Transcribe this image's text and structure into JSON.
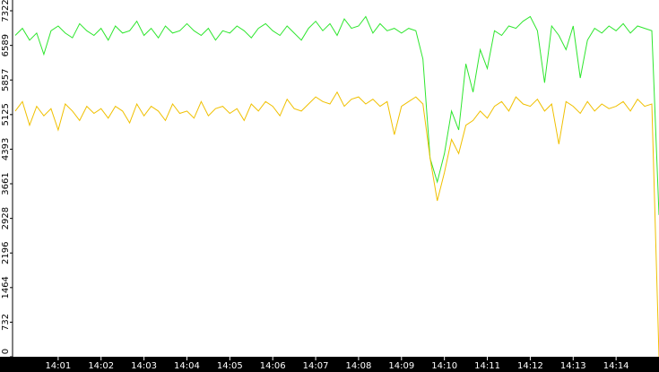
{
  "chart_data": {
    "type": "line",
    "x": [
      "14:00:00",
      "14:00:10",
      "14:00:20",
      "14:00:30",
      "14:00:40",
      "14:00:50",
      "14:01:00",
      "14:01:10",
      "14:01:20",
      "14:01:30",
      "14:01:40",
      "14:01:50",
      "14:02:00",
      "14:02:10",
      "14:02:20",
      "14:02:30",
      "14:02:40",
      "14:02:50",
      "14:03:00",
      "14:03:10",
      "14:03:20",
      "14:03:30",
      "14:03:40",
      "14:03:50",
      "14:04:00",
      "14:04:10",
      "14:04:20",
      "14:04:30",
      "14:04:40",
      "14:04:50",
      "14:05:00",
      "14:05:10",
      "14:05:20",
      "14:05:30",
      "14:05:40",
      "14:05:50",
      "14:06:00",
      "14:06:10",
      "14:06:20",
      "14:06:30",
      "14:06:40",
      "14:06:50",
      "14:07:00",
      "14:07:10",
      "14:07:20",
      "14:07:30",
      "14:07:40",
      "14:07:50",
      "14:08:00",
      "14:08:10",
      "14:08:20",
      "14:08:30",
      "14:08:40",
      "14:08:50",
      "14:09:00",
      "14:09:10",
      "14:09:20",
      "14:09:30",
      "14:09:40",
      "14:09:50",
      "14:10:00",
      "14:10:10",
      "14:10:20",
      "14:10:30",
      "14:10:40",
      "14:10:50",
      "14:11:00",
      "14:11:10",
      "14:11:20",
      "14:11:30",
      "14:11:40",
      "14:11:50",
      "14:12:00",
      "14:12:10",
      "14:12:20",
      "14:12:30",
      "14:12:40",
      "14:12:50",
      "14:13:00",
      "14:13:10",
      "14:13:20",
      "14:13:30",
      "14:13:40",
      "14:13:50",
      "14:14:00",
      "14:14:10",
      "14:14:20",
      "14:14:30",
      "14:14:40",
      "14:14:50",
      "14:15:00"
    ],
    "series": [
      {
        "color": "#2ee62e",
        "values": [
          6800,
          6950,
          6700,
          6850,
          6400,
          6900,
          7000,
          6850,
          6750,
          7050,
          6900,
          6800,
          6950,
          6700,
          7000,
          6850,
          6900,
          7100,
          6800,
          6950,
          6750,
          7000,
          6850,
          6900,
          7050,
          6900,
          6800,
          6950,
          6700,
          6900,
          6850,
          7000,
          6900,
          6750,
          6950,
          7050,
          6900,
          6800,
          7000,
          6850,
          6700,
          6950,
          7100,
          6900,
          7050,
          6800,
          7150,
          6950,
          7000,
          7200,
          6850,
          7050,
          6900,
          6950,
          6850,
          6950,
          6900,
          6300,
          4200,
          3700,
          4300,
          5200,
          4800,
          6200,
          5600,
          6500,
          6100,
          6900,
          6800,
          7000,
          6950,
          7100,
          7200,
          6900,
          5800,
          7000,
          6800,
          6500,
          7000,
          5900,
          6700,
          6950,
          6850,
          7000,
          6900,
          7050,
          6850,
          7000,
          6950,
          6900,
          3000
        ]
      },
      {
        "color": "#f0c000",
        "values": [
          5200,
          5400,
          4900,
          5300,
          5100,
          5250,
          4800,
          5350,
          5200,
          5000,
          5300,
          5150,
          5250,
          5050,
          5300,
          5200,
          4950,
          5350,
          5100,
          5300,
          5200,
          5000,
          5350,
          5150,
          5200,
          5050,
          5400,
          5100,
          5250,
          5300,
          5150,
          5250,
          5000,
          5350,
          5200,
          5400,
          5300,
          5100,
          5450,
          5250,
          5200,
          5350,
          5500,
          5400,
          5350,
          5600,
          5300,
          5450,
          5500,
          5350,
          5450,
          5300,
          5400,
          4700,
          5300,
          5400,
          5500,
          5350,
          4200,
          3300,
          3900,
          4600,
          4300,
          4900,
          5000,
          5200,
          5050,
          5300,
          5400,
          5200,
          5500,
          5350,
          5300,
          5450,
          5200,
          5350,
          4500,
          5400,
          5300,
          5150,
          5400,
          5200,
          5350,
          5250,
          5300,
          5400,
          5200,
          5450,
          5300,
          5350,
          0
        ]
      }
    ],
    "xlim": [
      "14:00:00",
      "14:15:00"
    ],
    "xticks": [
      "14:01",
      "14:02",
      "14:03",
      "14:04",
      "14:05",
      "14:06",
      "14:07",
      "14:08",
      "14:09",
      "14:10",
      "14:11",
      "14:12",
      "14:13",
      "14:14"
    ],
    "ylim": [
      0,
      7550
    ],
    "yticks": [
      0,
      732,
      1464,
      2196,
      2928,
      3661,
      4393,
      5125,
      5857,
      6589,
      7322
    ]
  }
}
